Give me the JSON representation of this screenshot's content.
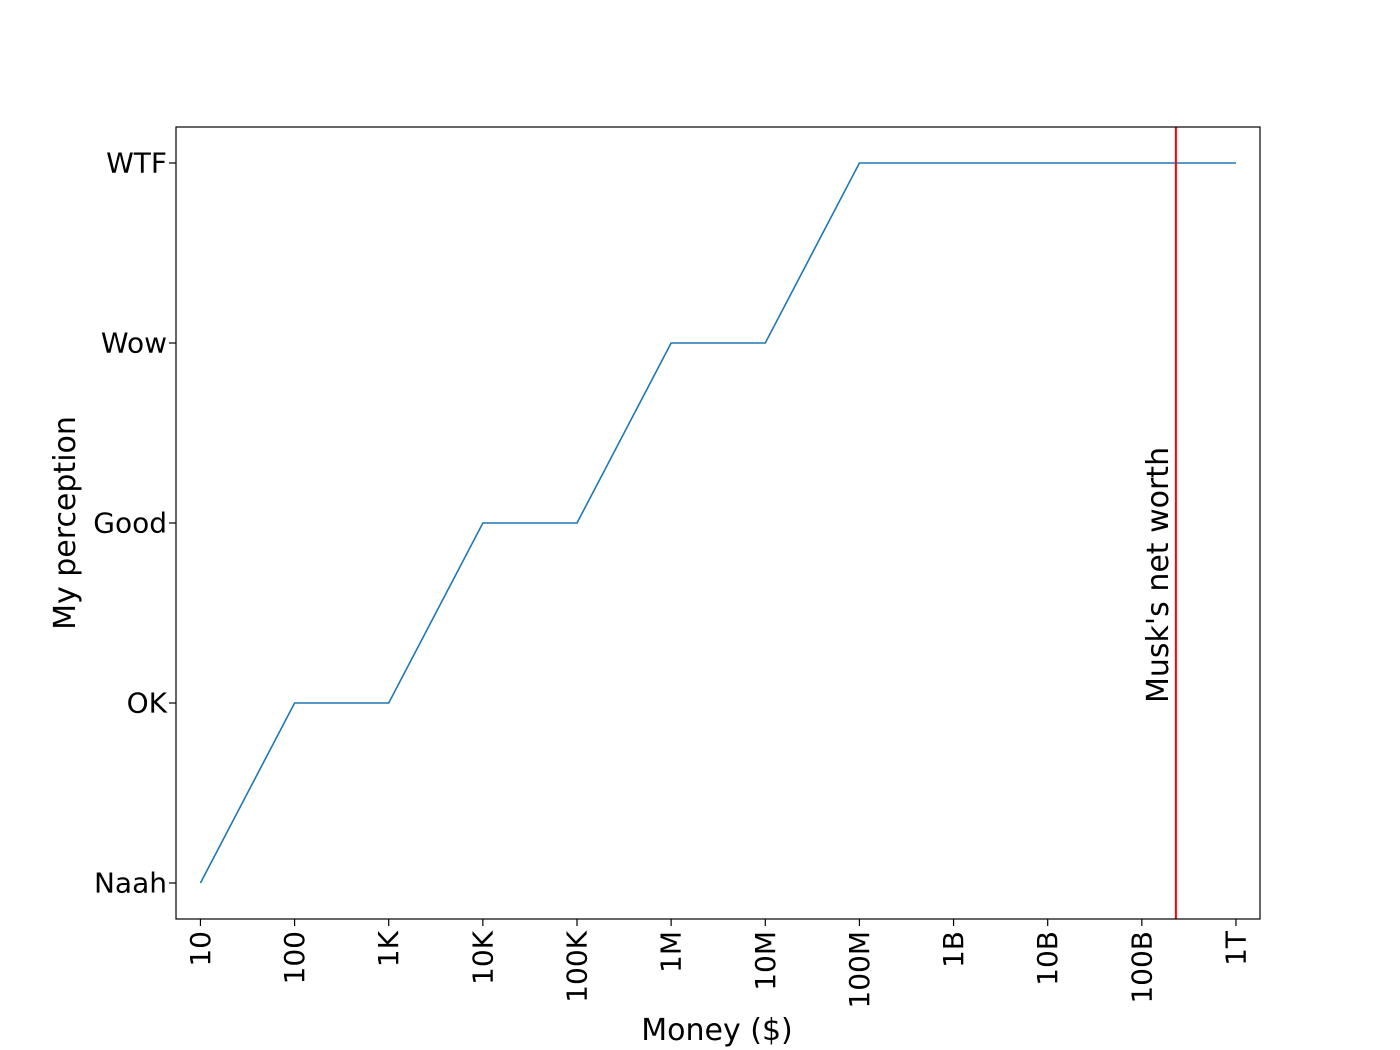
{
  "chart_data": {
    "type": "line",
    "title": "",
    "xlabel": "Money ($)",
    "ylabel": "My perception",
    "x_scale": "log",
    "x_ticks": [
      "10",
      "100",
      "1K",
      "10K",
      "100K",
      "1M",
      "10M",
      "100M",
      "1B",
      "10B",
      "100B",
      "1T"
    ],
    "x_tick_values": [
      10,
      100,
      1000,
      10000,
      100000,
      1000000,
      10000000,
      100000000,
      1000000000,
      10000000000,
      100000000000,
      1000000000000
    ],
    "y_ticks": [
      "Naah",
      "OK",
      "Good",
      "Wow",
      "WTF"
    ],
    "y_tick_values": [
      0,
      1,
      2,
      3,
      4
    ],
    "xlim": [
      5.5,
      1800000000000
    ],
    "ylim": [
      -0.2,
      4.2
    ],
    "series": [
      {
        "x": [
          10,
          100,
          1000,
          10000,
          100000,
          1000000,
          10000000,
          100000000,
          1000000000,
          10000000000,
          100000000000,
          1000000000000
        ],
        "y": [
          0,
          1,
          1,
          2,
          2,
          3,
          3,
          4,
          4,
          4,
          4,
          4
        ]
      }
    ],
    "annotations": [
      {
        "type": "vline",
        "x": 230000000000,
        "label": "Musk's net worth",
        "color": "#ff0000"
      }
    ],
    "grid": false,
    "legend": "none",
    "colors": {
      "series": "#1f77b4",
      "vline": "#ff0000",
      "axes": "#000000",
      "background": "#ffffff"
    }
  }
}
